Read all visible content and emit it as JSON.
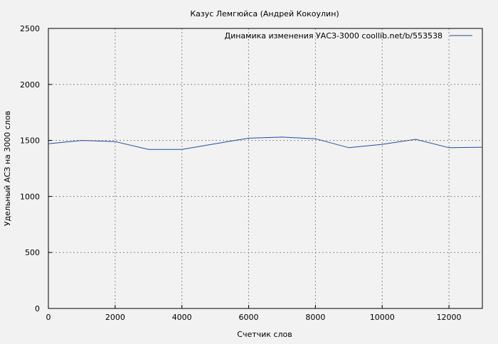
{
  "chart_data": {
    "type": "line",
    "title": "Казус Лемгюйса (Андрей Кокоулин)",
    "xlabel": "Счетчик слов",
    "ylabel": "Удельный АСЗ на 3000 слов",
    "xlim": [
      0,
      13000
    ],
    "ylim": [
      0,
      2500
    ],
    "x_ticks": [
      0,
      2000,
      4000,
      6000,
      8000,
      10000,
      12000
    ],
    "y_ticks": [
      0,
      500,
      1000,
      1500,
      2000,
      2500
    ],
    "grid": true,
    "legend_position": "top-right",
    "series": [
      {
        "name": "Динамика изменения УАСЗ-3000  coollib.net/b/553538",
        "color": "#1f4e9c",
        "x": [
          0,
          1000,
          2000,
          3000,
          4000,
          5000,
          6000,
          7000,
          8000,
          9000,
          10000,
          11000,
          12000,
          13000
        ],
        "y": [
          1470,
          1500,
          1490,
          1420,
          1420,
          1470,
          1520,
          1530,
          1515,
          1435,
          1465,
          1510,
          1435,
          1440
        ]
      }
    ]
  }
}
